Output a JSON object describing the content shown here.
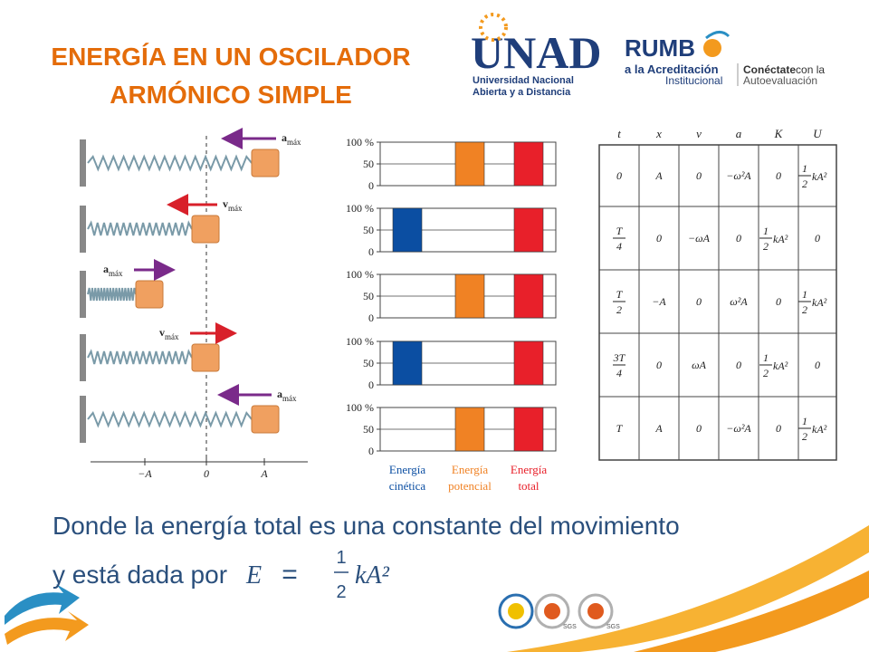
{
  "title": [
    "ENERGÍA EN UN OSCILADOR",
    "ARMÓNICO SIMPLE"
  ],
  "logos": {
    "unad": {
      "name": "UNAD",
      "lines": [
        "Universidad Nacional",
        "Abierta y a Distancia"
      ]
    },
    "rumbo": {
      "name": "RUMB",
      "lines": [
        "a la Acreditación",
        "Institucional"
      ],
      "tag": [
        "Conéctate",
        "con la",
        "Autoevaluación"
      ]
    },
    "seals": [
      "SGS",
      "SGS"
    ]
  },
  "oscillator": {
    "rows": [
      {
        "vector": "a",
        "sub": "máx"
      },
      {
        "vector": "v",
        "sub": "máx"
      },
      {
        "vector": "a",
        "sub": "máx"
      },
      {
        "vector": "v",
        "sub": "máx"
      },
      {
        "vector": "a",
        "sub": "máx"
      }
    ],
    "axis": [
      "−A",
      "0",
      "A"
    ]
  },
  "energy_bars": {
    "ylim": [
      0,
      100
    ],
    "yticks": [
      {
        "value": 100,
        "label": "100 %"
      },
      50,
      0
    ],
    "legend": [
      {
        "lines": [
          "Energía",
          "cinética"
        ],
        "color": "#0b4ea2"
      },
      {
        "lines": [
          "Energía",
          "potencial"
        ],
        "color": "#f08224"
      },
      {
        "lines": [
          "Energía",
          "total"
        ],
        "color": "#e8202a"
      }
    ],
    "panels": [
      [
        0,
        100,
        100
      ],
      [
        100,
        0,
        100
      ],
      [
        0,
        100,
        100
      ],
      [
        100,
        0,
        100
      ],
      [
        0,
        100,
        100
      ]
    ]
  },
  "table": {
    "headers": [
      "t",
      "x",
      "v",
      "a",
      "K",
      "U"
    ],
    "rows": [
      [
        "0",
        "A",
        "0",
        "−ω²A",
        "0",
        {
          "num": "1",
          "den": "2",
          "rest": "kA²"
        }
      ],
      [
        {
          "num": "T",
          "den": "4"
        },
        "0",
        "−ωA",
        "0",
        {
          "num": "1",
          "den": "2",
          "rest": "kA²"
        },
        "0"
      ],
      [
        {
          "num": "T",
          "den": "2"
        },
        "−A",
        "0",
        "ω²A",
        "0",
        {
          "num": "1",
          "den": "2",
          "rest": "kA²"
        }
      ],
      [
        {
          "num": "3T",
          "den": "4"
        },
        "0",
        "ωA",
        "0",
        {
          "num": "1",
          "den": "2",
          "rest": "kA²"
        },
        "0"
      ],
      [
        "T",
        "A",
        "0",
        "−ω²A",
        "0",
        {
          "num": "1",
          "den": "2",
          "rest": "kA²"
        }
      ]
    ]
  },
  "text": {
    "line1": "Donde la energía total es una constante del movimiento",
    "line2": "y está dada por",
    "formula": {
      "lhs": "E",
      "eq": "=",
      "num": "1",
      "den": "2",
      "rest": "kA²"
    }
  }
}
